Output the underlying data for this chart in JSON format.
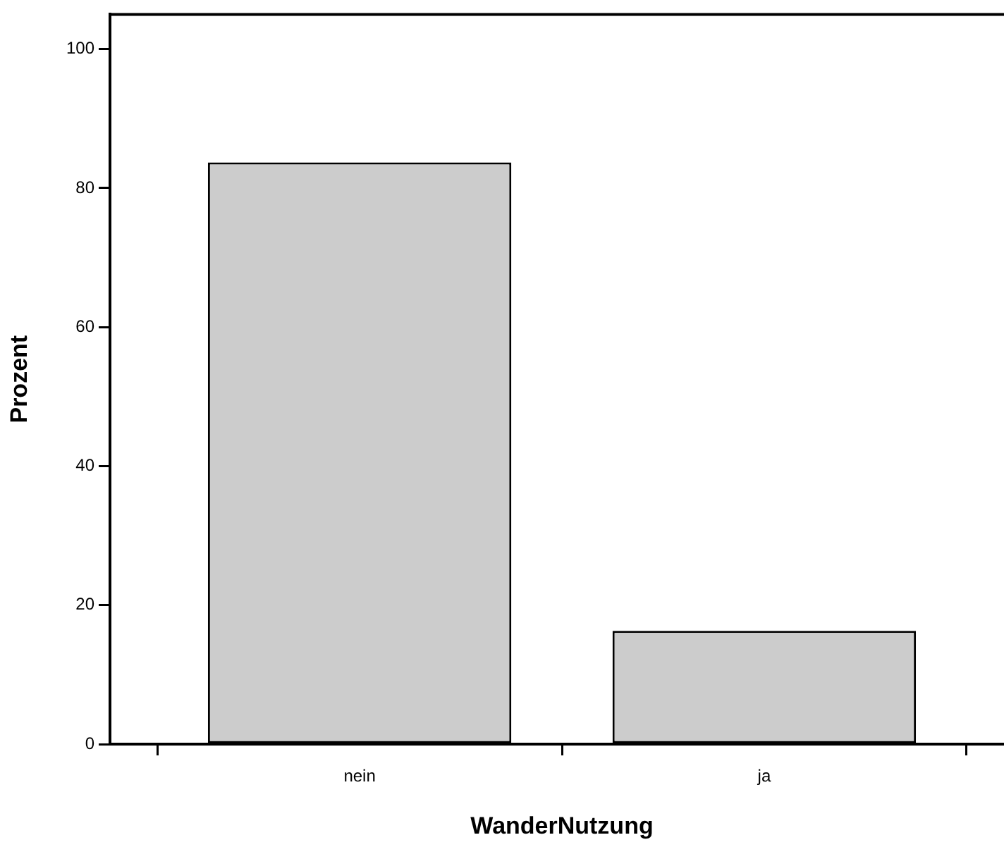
{
  "chart_data": {
    "type": "bar",
    "xlabel": "WanderNutzung",
    "ylabel": "Prozent",
    "categories": [
      "nein",
      "ja"
    ],
    "values": [
      83.7,
      16.3
    ],
    "color": "#cccccc",
    "ylim": [
      0,
      105
    ],
    "yticks": [
      0,
      20,
      40,
      60,
      80,
      100
    ],
    "grid": false,
    "legend": false
  }
}
